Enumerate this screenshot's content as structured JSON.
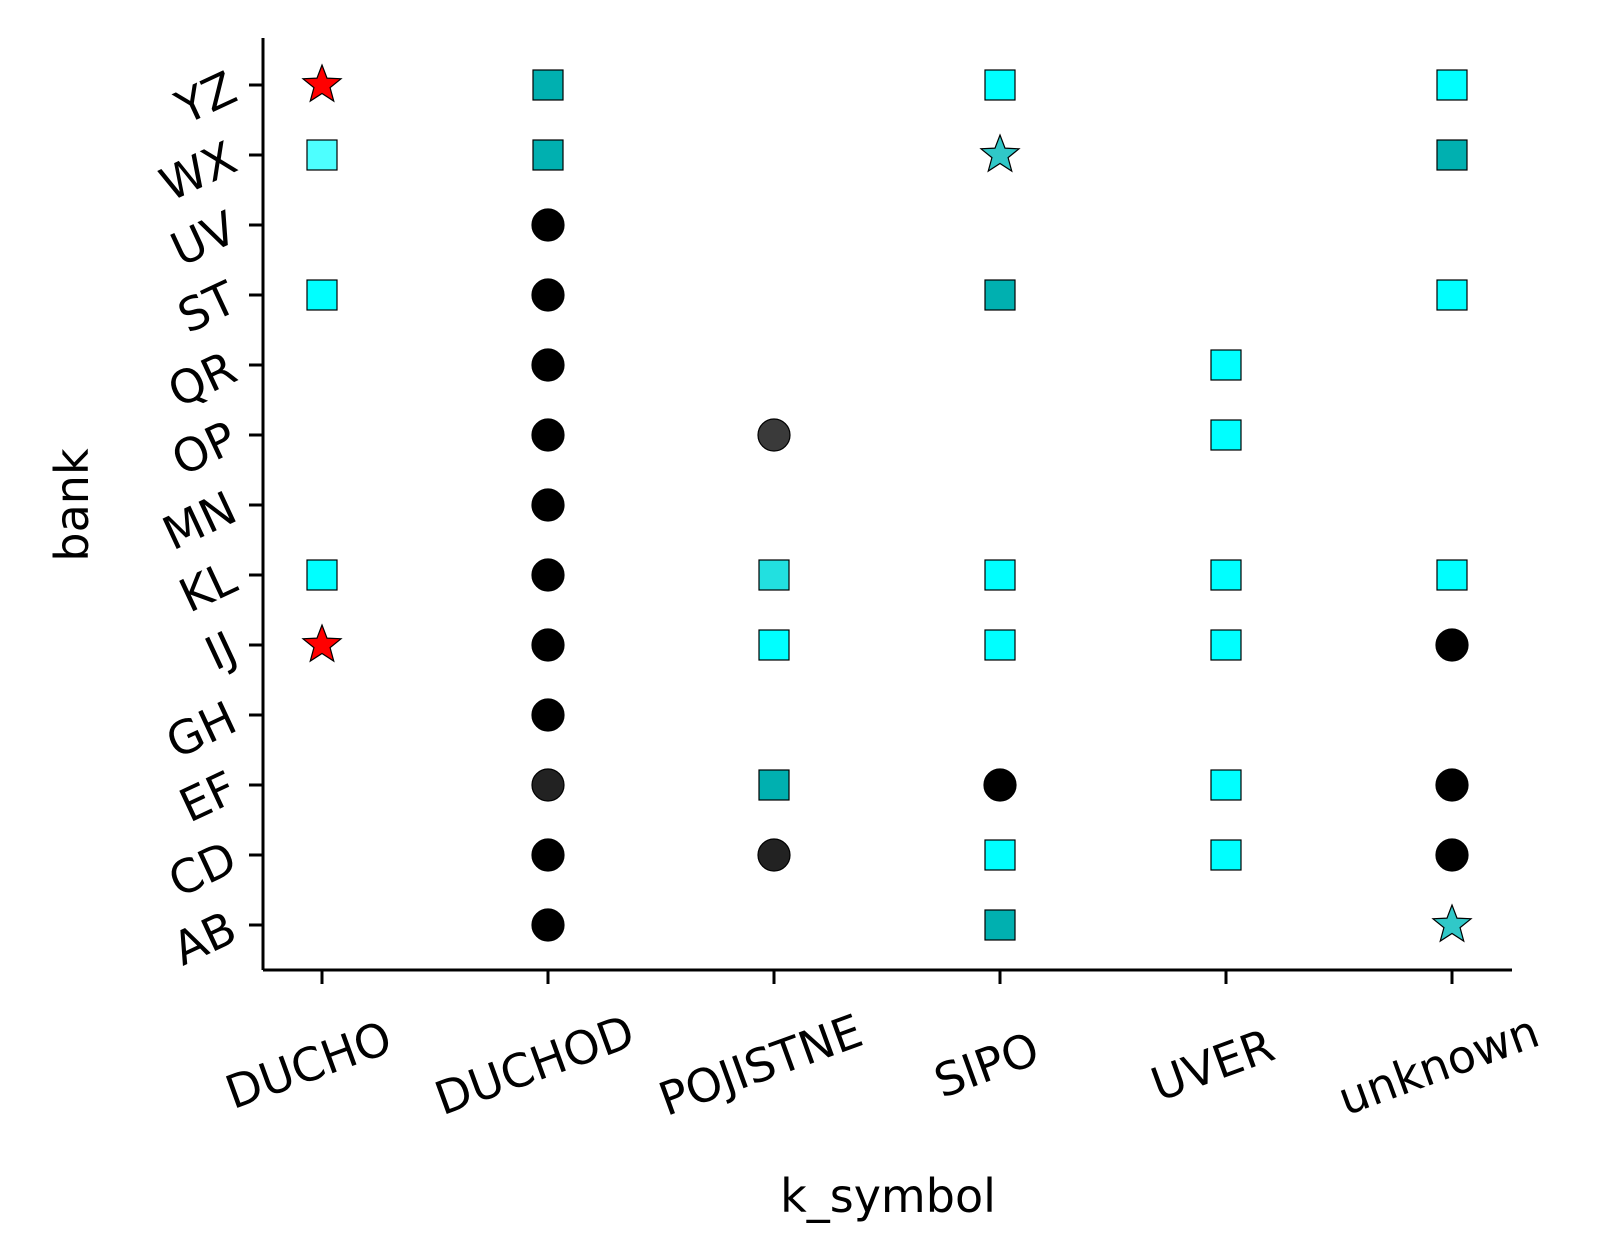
{
  "chart_data": {
    "type": "scatter",
    "title": "",
    "xlabel": "k_symbol",
    "ylabel": "bank",
    "grid": false,
    "legend": "none",
    "x_categories": [
      "DUCHO",
      "DUCHOD",
      "POJISTNE",
      "SIPO",
      "UVER",
      "unknown"
    ],
    "y_categories": [
      "AB",
      "CD",
      "EF",
      "GH",
      "IJ",
      "KL",
      "MN",
      "OP",
      "QR",
      "ST",
      "UV",
      "WX",
      "YZ"
    ],
    "marker_styles": {
      "circle": {
        "shape": "circle",
        "color": "#000000"
      },
      "circle_dark": {
        "shape": "circle",
        "color": "#222222"
      },
      "circle_gray": {
        "shape": "circle",
        "color": "#3a3a3a"
      },
      "square": {
        "shape": "square",
        "color": "#00ffff"
      },
      "square_light": {
        "shape": "square",
        "color": "#22e0e0"
      },
      "square_pale": {
        "shape": "square",
        "color": "#4dffff"
      },
      "square_teal": {
        "shape": "square",
        "color": "#00b0b0"
      },
      "star_red": {
        "shape": "star",
        "color": "#ff0000"
      },
      "star_teal": {
        "shape": "star",
        "color": "#30c8c8"
      }
    },
    "points": [
      {
        "x": "DUCHO",
        "y": "YZ",
        "style": "star_red"
      },
      {
        "x": "DUCHO",
        "y": "WX",
        "style": "square_pale"
      },
      {
        "x": "DUCHO",
        "y": "ST",
        "style": "square"
      },
      {
        "x": "DUCHO",
        "y": "KL",
        "style": "square"
      },
      {
        "x": "DUCHO",
        "y": "IJ",
        "style": "star_red"
      },
      {
        "x": "DUCHOD",
        "y": "YZ",
        "style": "square_teal"
      },
      {
        "x": "DUCHOD",
        "y": "WX",
        "style": "square_teal"
      },
      {
        "x": "DUCHOD",
        "y": "UV",
        "style": "circle"
      },
      {
        "x": "DUCHOD",
        "y": "ST",
        "style": "circle"
      },
      {
        "x": "DUCHOD",
        "y": "QR",
        "style": "circle"
      },
      {
        "x": "DUCHOD",
        "y": "OP",
        "style": "circle"
      },
      {
        "x": "DUCHOD",
        "y": "MN",
        "style": "circle"
      },
      {
        "x": "DUCHOD",
        "y": "KL",
        "style": "circle"
      },
      {
        "x": "DUCHOD",
        "y": "IJ",
        "style": "circle"
      },
      {
        "x": "DUCHOD",
        "y": "GH",
        "style": "circle"
      },
      {
        "x": "DUCHOD",
        "y": "EF",
        "style": "circle_dark"
      },
      {
        "x": "DUCHOD",
        "y": "CD",
        "style": "circle"
      },
      {
        "x": "DUCHOD",
        "y": "AB",
        "style": "circle"
      },
      {
        "x": "POJISTNE",
        "y": "OP",
        "style": "circle_gray"
      },
      {
        "x": "POJISTNE",
        "y": "KL",
        "style": "square_light"
      },
      {
        "x": "POJISTNE",
        "y": "IJ",
        "style": "square"
      },
      {
        "x": "POJISTNE",
        "y": "EF",
        "style": "square_teal"
      },
      {
        "x": "POJISTNE",
        "y": "CD",
        "style": "circle_dark"
      },
      {
        "x": "SIPO",
        "y": "YZ",
        "style": "square"
      },
      {
        "x": "SIPO",
        "y": "WX",
        "style": "star_teal"
      },
      {
        "x": "SIPO",
        "y": "ST",
        "style": "square_teal"
      },
      {
        "x": "SIPO",
        "y": "KL",
        "style": "square"
      },
      {
        "x": "SIPO",
        "y": "IJ",
        "style": "square"
      },
      {
        "x": "SIPO",
        "y": "EF",
        "style": "circle"
      },
      {
        "x": "SIPO",
        "y": "CD",
        "style": "square"
      },
      {
        "x": "SIPO",
        "y": "AB",
        "style": "square_teal"
      },
      {
        "x": "UVER",
        "y": "QR",
        "style": "square"
      },
      {
        "x": "UVER",
        "y": "OP",
        "style": "square"
      },
      {
        "x": "UVER",
        "y": "KL",
        "style": "square"
      },
      {
        "x": "UVER",
        "y": "IJ",
        "style": "square"
      },
      {
        "x": "UVER",
        "y": "EF",
        "style": "square"
      },
      {
        "x": "UVER",
        "y": "CD",
        "style": "square"
      },
      {
        "x": "unknown",
        "y": "YZ",
        "style": "square"
      },
      {
        "x": "unknown",
        "y": "WX",
        "style": "square_teal"
      },
      {
        "x": "unknown",
        "y": "ST",
        "style": "square"
      },
      {
        "x": "unknown",
        "y": "KL",
        "style": "square"
      },
      {
        "x": "unknown",
        "y": "IJ",
        "style": "circle"
      },
      {
        "x": "unknown",
        "y": "EF",
        "style": "circle"
      },
      {
        "x": "unknown",
        "y": "CD",
        "style": "circle"
      },
      {
        "x": "unknown",
        "y": "AB",
        "style": "star_teal"
      }
    ]
  }
}
